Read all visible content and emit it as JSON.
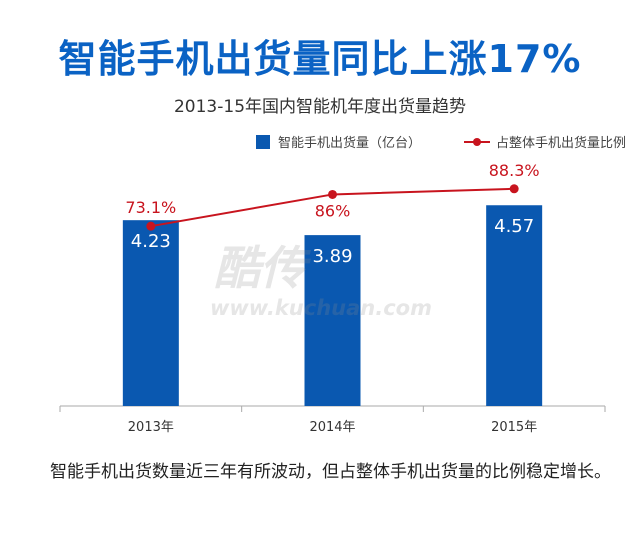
{
  "headline": "智能手机出货量同比上涨17%",
  "caption": "智能手机出货数量近三年有所波动，但占整体手机出货量的比例稳定增长。",
  "watermark": {
    "mark": "酷传",
    "url": "www.kuchuan.com"
  },
  "colors": {
    "headline": "#0a62c4",
    "bar": "#0a58b0",
    "line": "#c8141e"
  },
  "chart_data": {
    "type": "bar",
    "title": "2013-15年国内智能机年度出货量趋势",
    "categories": [
      "2013年",
      "2014年",
      "2015年"
    ],
    "series": [
      {
        "name": "智能手机出货量（亿台）",
        "type": "bar",
        "values": [
          4.23,
          3.89,
          4.57
        ],
        "labels": [
          "4.23",
          "3.89",
          "4.57"
        ]
      },
      {
        "name": "占整体手机出货量比例",
        "type": "line",
        "values": [
          73.1,
          86,
          88.3
        ],
        "labels": [
          "73.1%",
          "86%",
          "88.3%"
        ]
      }
    ],
    "bar_ylim": [
      0,
      5.6
    ],
    "line_ylim": [
      0,
      100
    ],
    "legend_position": "top-right",
    "grid": false
  }
}
